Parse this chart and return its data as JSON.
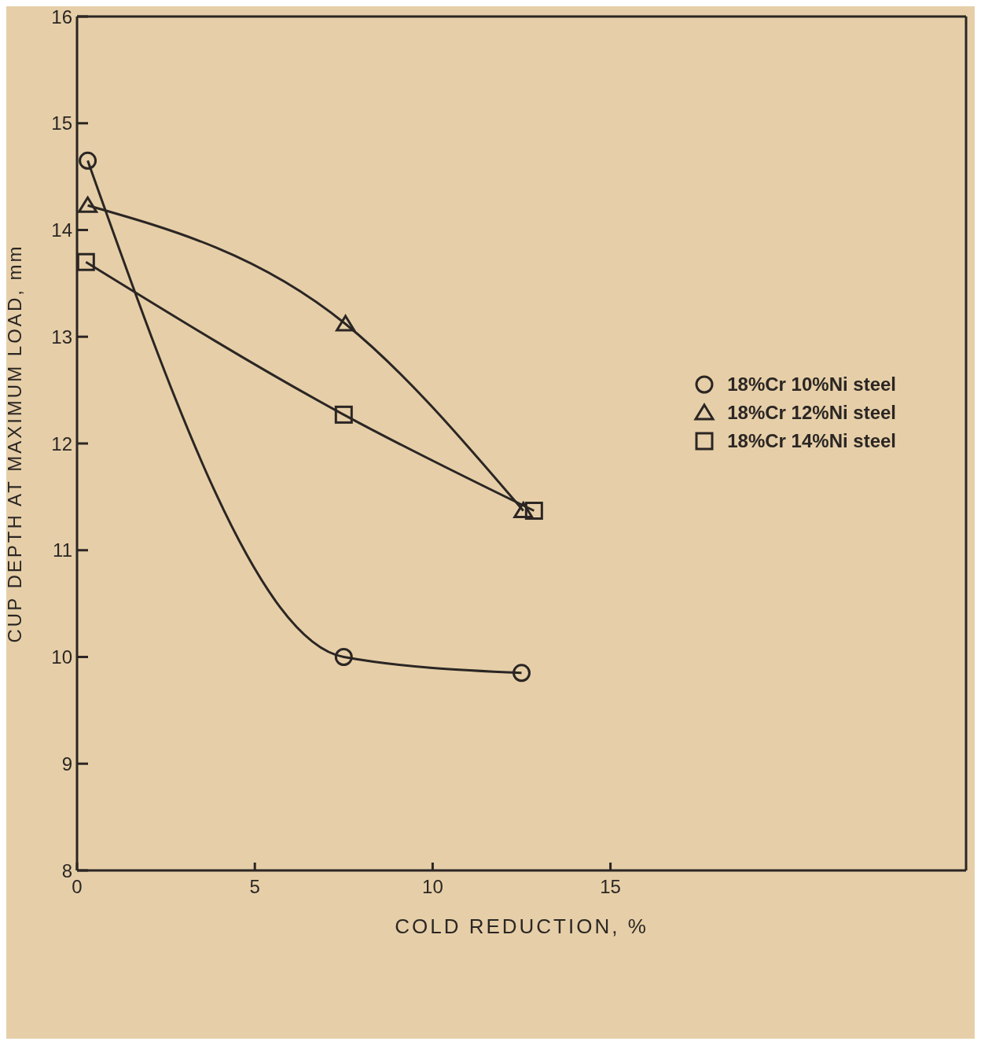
{
  "chart_data": {
    "type": "line",
    "xlabel": "COLD REDUCTION, %",
    "ylabel": "CUP DEPTH AT MAXIMUM LOAD, mm",
    "xlim": [
      0,
      25
    ],
    "xticks": [
      0,
      5,
      10,
      15
    ],
    "ylim": [
      8,
      16
    ],
    "yticks": [
      8,
      9,
      10,
      11,
      12,
      13,
      14,
      15,
      16
    ],
    "grid": false,
    "legend": "right",
    "line_style": "solid",
    "series": [
      {
        "name": "18%Cr 10%Ni steel",
        "color": "#2b2624",
        "marker": "circle",
        "x": [
          0.3,
          7.5,
          12.5
        ],
        "values": [
          14.65,
          10.0,
          9.85
        ]
      },
      {
        "name": "18%Cr 12%Ni steel",
        "color": "#2b2624",
        "marker": "triangle",
        "x": [
          0.3,
          7.55,
          12.55
        ],
        "values": [
          14.23,
          13.12,
          11.37
        ]
      },
      {
        "name": "18%Cr 14%Ni steel",
        "color": "#2b2624",
        "marker": "square",
        "x": [
          0.25,
          7.5,
          12.85
        ],
        "values": [
          13.7,
          12.27,
          11.37
        ]
      }
    ]
  }
}
